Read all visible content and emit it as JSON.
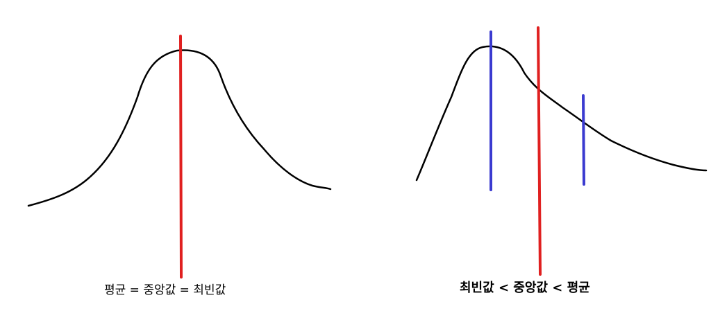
{
  "panels": {
    "symmetric": {
      "caption": "평균 = 중앙값 = 최빈값",
      "curve_color": "#000000",
      "center_line_color": "#e02020"
    },
    "skewed": {
      "caption": "최빈값 < 중앙값 < 평균",
      "curve_color": "#000000",
      "median_line_color": "#e02020",
      "mode_mean_line_color": "#3b3bd0"
    }
  }
}
